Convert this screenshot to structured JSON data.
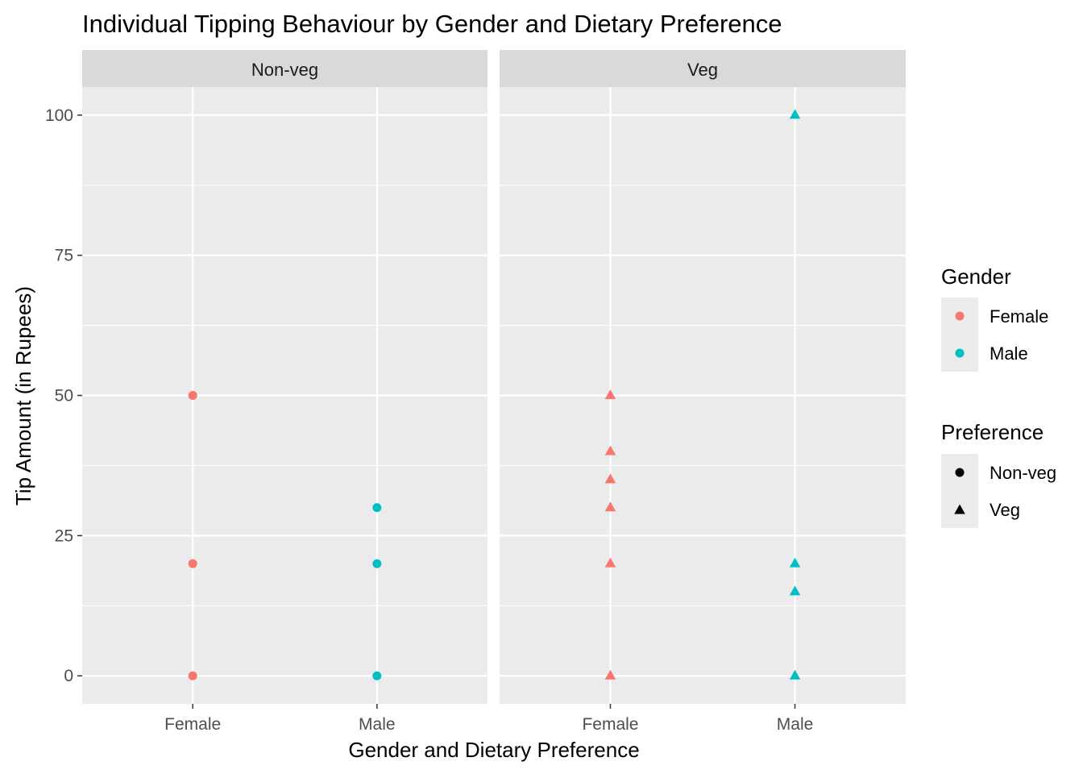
{
  "chart_data": {
    "type": "scatter",
    "title": "Individual Tipping Behaviour by Gender and Dietary Preference",
    "xlabel": "Gender and Dietary Preference",
    "ylabel": "Tip Amount (in Rupees)",
    "ylim": [
      -5,
      105
    ],
    "yticks": [
      0,
      25,
      50,
      75,
      100
    ],
    "categories": [
      "Female",
      "Male"
    ],
    "grid": true,
    "facets": [
      {
        "label": "Non-veg",
        "points": [
          {
            "x": "Female",
            "y": 50,
            "gender": "Female",
            "preference": "Non-veg"
          },
          {
            "x": "Female",
            "y": 20,
            "gender": "Female",
            "preference": "Non-veg"
          },
          {
            "x": "Female",
            "y": 0,
            "gender": "Female",
            "preference": "Non-veg"
          },
          {
            "x": "Male",
            "y": 30,
            "gender": "Male",
            "preference": "Non-veg"
          },
          {
            "x": "Male",
            "y": 20,
            "gender": "Male",
            "preference": "Non-veg"
          },
          {
            "x": "Male",
            "y": 0,
            "gender": "Male",
            "preference": "Non-veg"
          }
        ]
      },
      {
        "label": "Veg",
        "points": [
          {
            "x": "Female",
            "y": 50,
            "gender": "Female",
            "preference": "Veg"
          },
          {
            "x": "Female",
            "y": 40,
            "gender": "Female",
            "preference": "Veg"
          },
          {
            "x": "Female",
            "y": 35,
            "gender": "Female",
            "preference": "Veg"
          },
          {
            "x": "Female",
            "y": 30,
            "gender": "Female",
            "preference": "Veg"
          },
          {
            "x": "Female",
            "y": 20,
            "gender": "Female",
            "preference": "Veg"
          },
          {
            "x": "Female",
            "y": 0,
            "gender": "Female",
            "preference": "Veg"
          },
          {
            "x": "Male",
            "y": 100,
            "gender": "Male",
            "preference": "Veg"
          },
          {
            "x": "Male",
            "y": 20,
            "gender": "Male",
            "preference": "Veg"
          },
          {
            "x": "Male",
            "y": 15,
            "gender": "Male",
            "preference": "Veg"
          },
          {
            "x": "Male",
            "y": 0,
            "gender": "Male",
            "preference": "Veg"
          }
        ]
      }
    ],
    "legend": {
      "placement": "right",
      "gender": {
        "title": "Gender",
        "entries": [
          {
            "label": "Female",
            "color": "#F8766D"
          },
          {
            "label": "Male",
            "color": "#00BFC4"
          }
        ]
      },
      "preference": {
        "title": "Preference",
        "entries": [
          {
            "label": "Non-veg",
            "shape": "circle"
          },
          {
            "label": "Veg",
            "shape": "triangle"
          }
        ]
      }
    },
    "colors": {
      "panel_background": "#EBEBEB",
      "strip_background": "#D9D9D9",
      "grid": "#FFFFFF",
      "legend_key_background": "#EBEBEB"
    }
  }
}
